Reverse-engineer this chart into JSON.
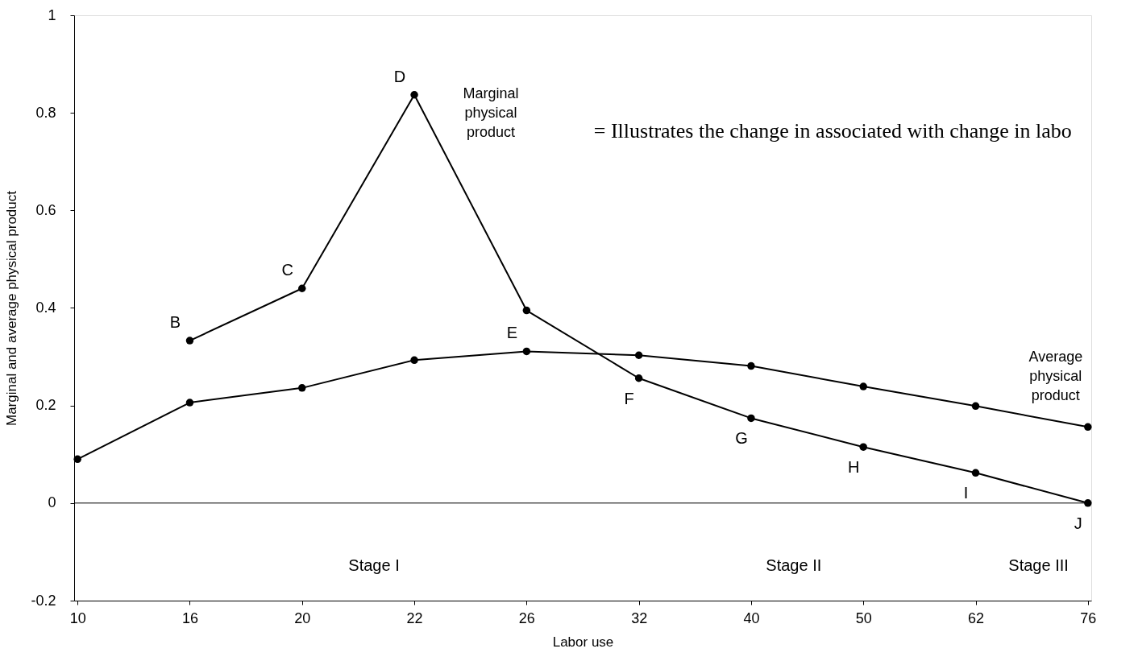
{
  "chart_data": {
    "type": "line",
    "xlabel": "Labor use",
    "ylabel": "Marginal and average physical product",
    "categories": [
      "10",
      "16",
      "20",
      "22",
      "26",
      "32",
      "40",
      "50",
      "62",
      "76"
    ],
    "series": [
      {
        "name": "Marginal physical product",
        "color": "#000000",
        "values": [
          null,
          0.333,
          0.44,
          0.837,
          0.395,
          0.256,
          0.174,
          0.115,
          0.062,
          0.0
        ]
      },
      {
        "name": "Average physical product",
        "color": "#000000",
        "values": [
          0.09,
          0.206,
          0.236,
          0.293,
          0.311,
          0.303,
          0.281,
          0.239,
          0.199,
          0.156
        ]
      }
    ],
    "ylim": [
      -0.2,
      1
    ],
    "yticks": [
      -0.2,
      0,
      0.2,
      0.4,
      0.6,
      0.8,
      1
    ],
    "ref_lines": [
      {
        "axis": "y",
        "value": 0,
        "color": "#000000",
        "line_style": "solid"
      }
    ],
    "annotations": [
      {
        "text": "B",
        "x": "16",
        "y": 0.333
      },
      {
        "text": "C",
        "x": "20",
        "y": 0.44
      },
      {
        "text": "D",
        "x": "22",
        "y": 0.837
      },
      {
        "text": "E",
        "x": "26",
        "y": 0.311
      },
      {
        "text": "F",
        "x": "32",
        "y": 0.256
      },
      {
        "text": "G",
        "x": "40",
        "y": 0.174
      },
      {
        "text": "H",
        "x": "50",
        "y": 0.115
      },
      {
        "text": "I",
        "x": "62",
        "y": 0.062
      },
      {
        "text": "J",
        "x": "76",
        "y": 0.0
      },
      "Stage I",
      "Stage II",
      "Stage III",
      "= Illustrates the change in associated with change in labo"
    ],
    "grid": false,
    "legend": false,
    "marker": "circle",
    "line_style": "solid"
  }
}
